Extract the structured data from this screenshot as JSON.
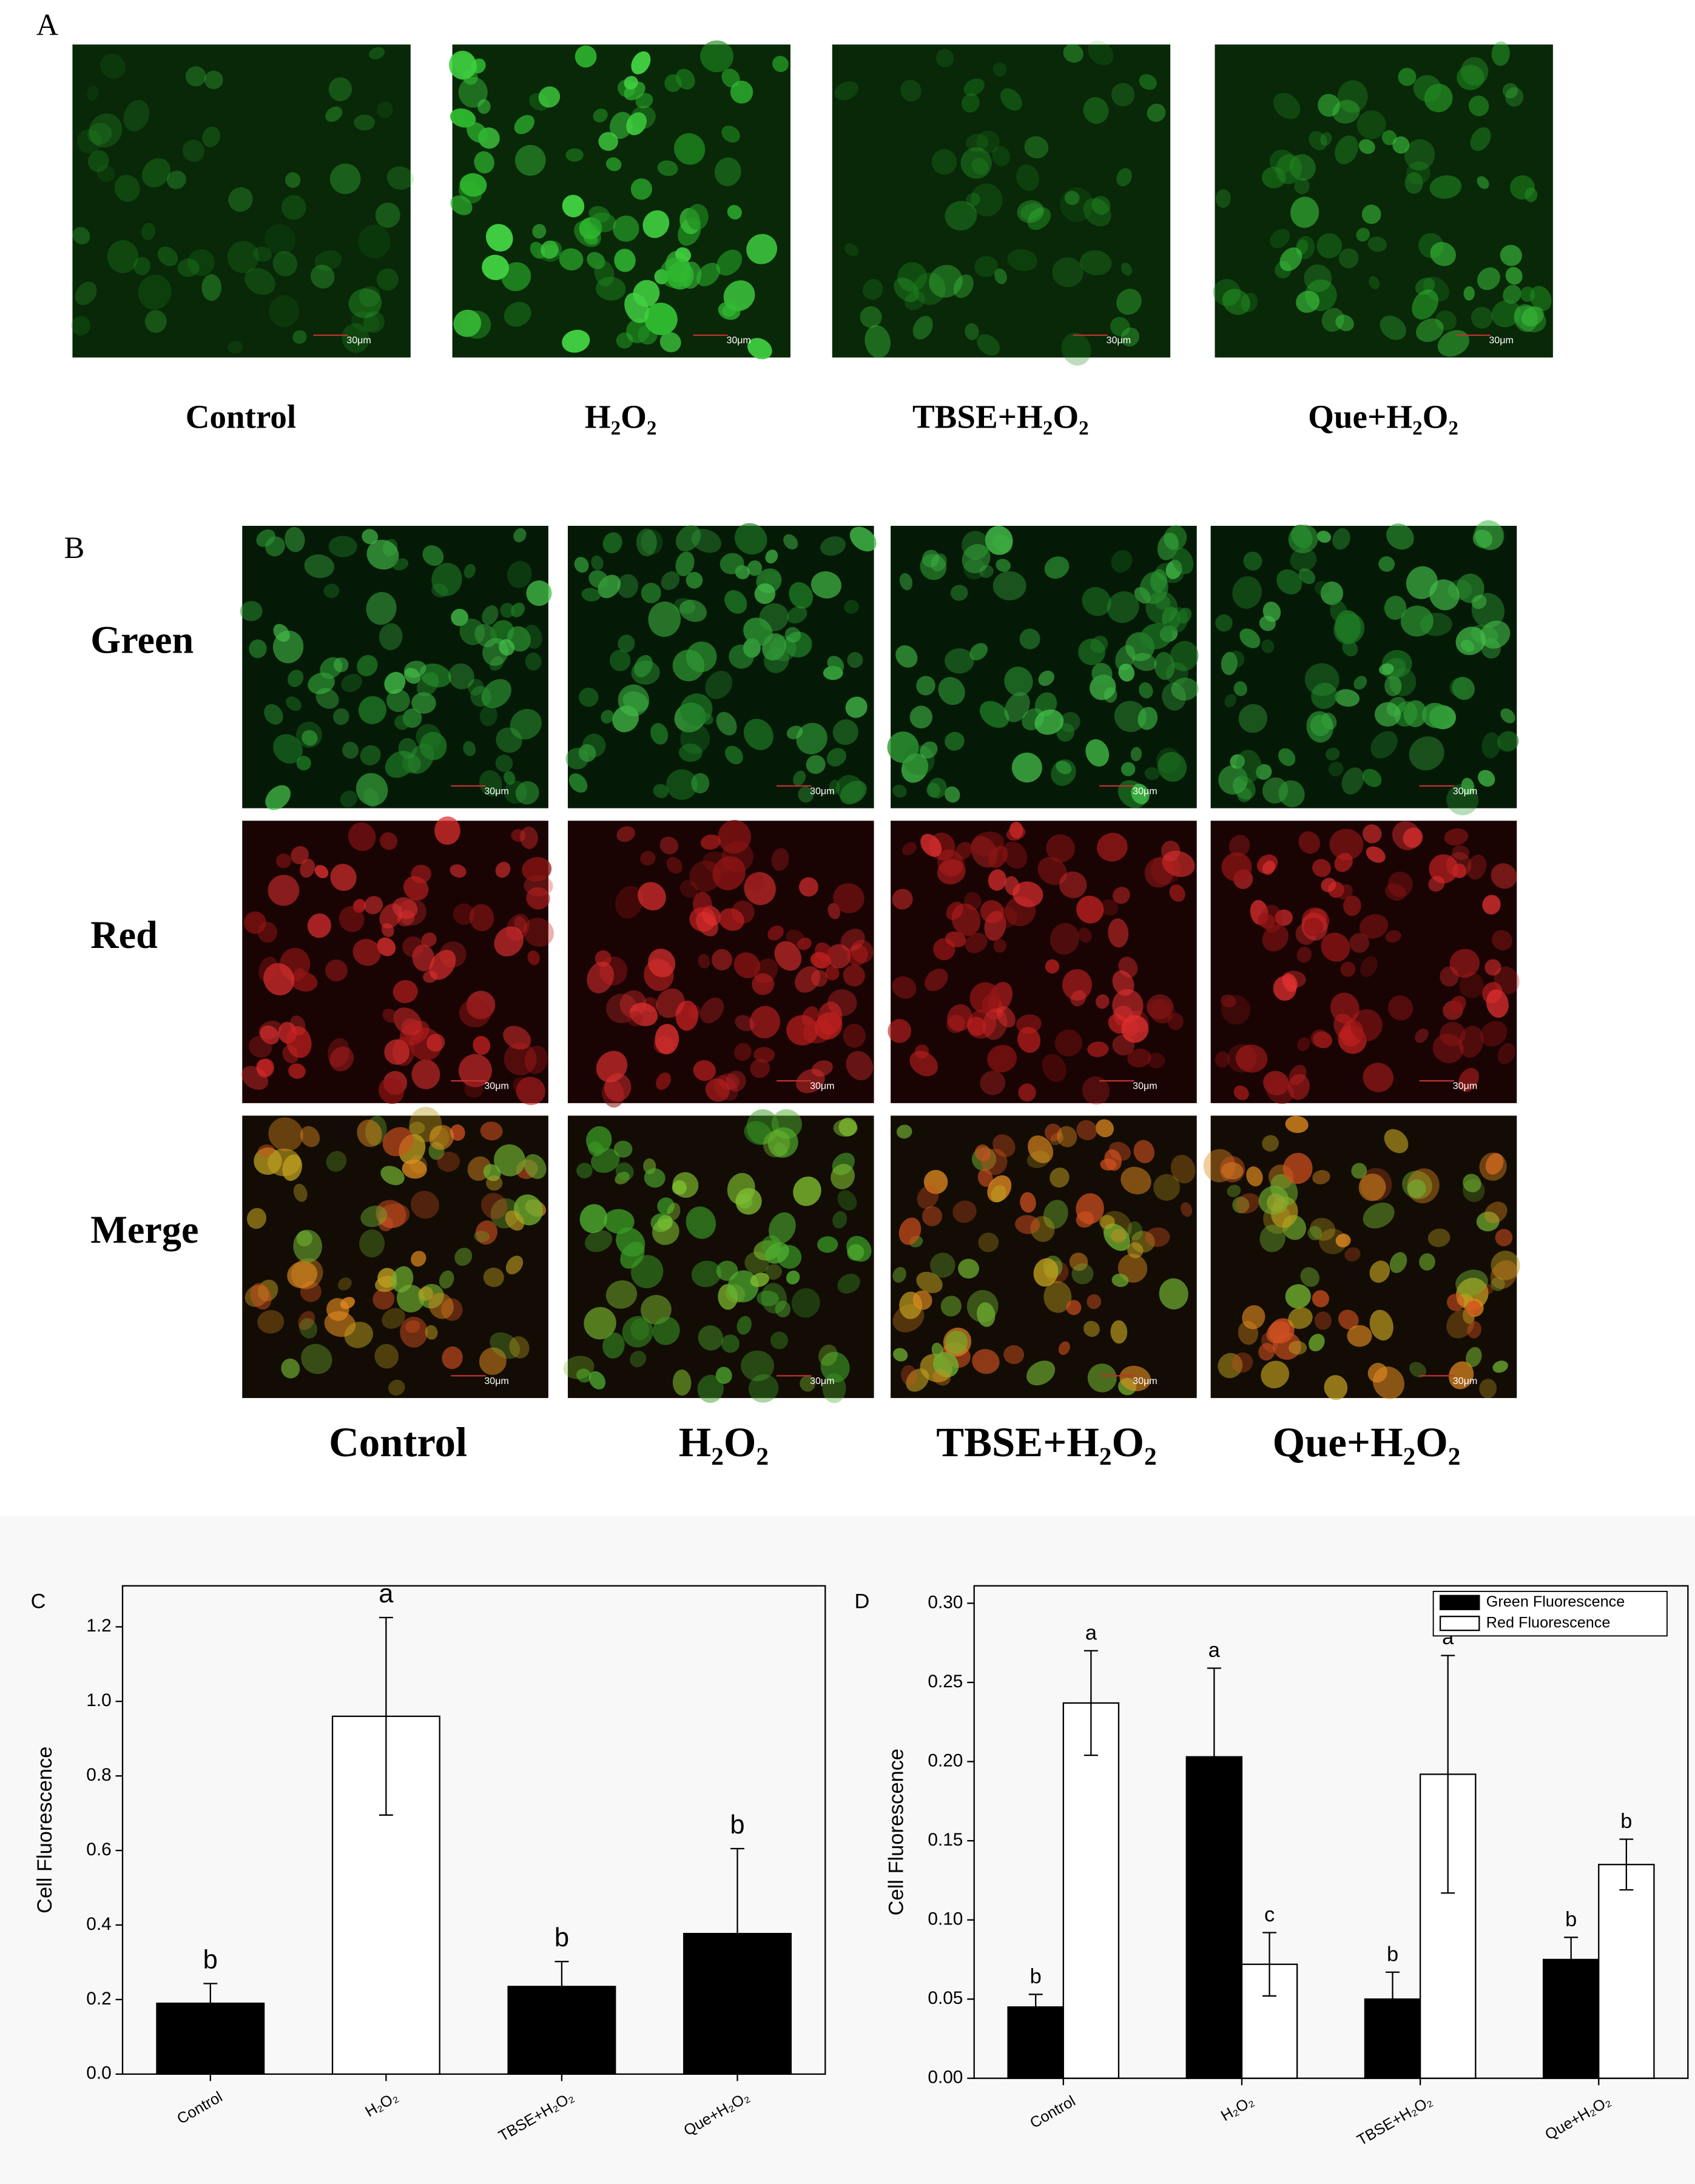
{
  "panel_a": {
    "label": "A",
    "scale_bar": "30μm",
    "columns": [
      "Control",
      "H₂O₂",
      "TBSE+H₂O₂",
      "Que+H₂O₂"
    ]
  },
  "panel_b": {
    "label": "B",
    "scale_bar": "30μm",
    "rows": [
      "Green",
      "Red",
      "Merge"
    ],
    "columns": [
      "Control",
      "H₂O₂",
      "TBSE+H₂O₂",
      "Que+H₂O₂"
    ]
  },
  "chart_data": [
    {
      "type": "bar",
      "label": "C",
      "ylabel": "Cell Fluorescence",
      "categories": [
        "Control",
        "H₂O₂",
        "TBSE+H₂O₂",
        "Que+H₂O₂"
      ],
      "values": [
        0.19,
        0.96,
        0.235,
        0.377
      ],
      "errors": [
        0.053,
        0.265,
        0.067,
        0.228
      ],
      "colors": [
        "#000000",
        "#ffffff",
        "#000000",
        "#000000"
      ],
      "annotations": [
        "b",
        "a",
        "b",
        "b"
      ],
      "ylim": [
        0,
        1.31
      ],
      "yticks": [
        {
          "value": 0,
          "label": "0.0"
        },
        0.2,
        0.4,
        0.6,
        0.8,
        {
          "value": 1,
          "label": "1.0"
        },
        1.2
      ]
    },
    {
      "type": "grouped_bar",
      "label": "D",
      "ylabel": "Cell Fluorescence",
      "categories": [
        "Control",
        "H₂O₂",
        "TBSE+H₂O₂",
        "Que+H₂O₂"
      ],
      "series": [
        {
          "name": "Green Fluorescence",
          "color": "#000000",
          "values": [
            0.045,
            0.203,
            0.05,
            0.075
          ],
          "errors": [
            0.008,
            0.056,
            0.017,
            0.014
          ],
          "annotations": [
            "b",
            "a",
            "b",
            "b"
          ]
        },
        {
          "name": "Red Fluorescence",
          "color": "#ffffff",
          "values": [
            0.237,
            0.072,
            0.192,
            0.135
          ],
          "errors": [
            0.033,
            0.02,
            0.075,
            0.016
          ],
          "annotations": [
            "a",
            "c",
            "a",
            "b"
          ]
        }
      ],
      "legend": "upper right",
      "ylim": [
        0,
        0.311
      ],
      "yticks": [
        {
          "value": 0,
          "label": "0.00"
        },
        {
          "value": 0.05,
          "label": "0.05"
        },
        {
          "value": 0.1,
          "label": "0.10"
        },
        {
          "value": 0.15,
          "label": "0.15"
        },
        {
          "value": 0.2,
          "label": "0.20"
        },
        {
          "value": 0.25,
          "label": "0.25"
        },
        {
          "value": 0.3,
          "label": "0.30"
        }
      ]
    }
  ]
}
